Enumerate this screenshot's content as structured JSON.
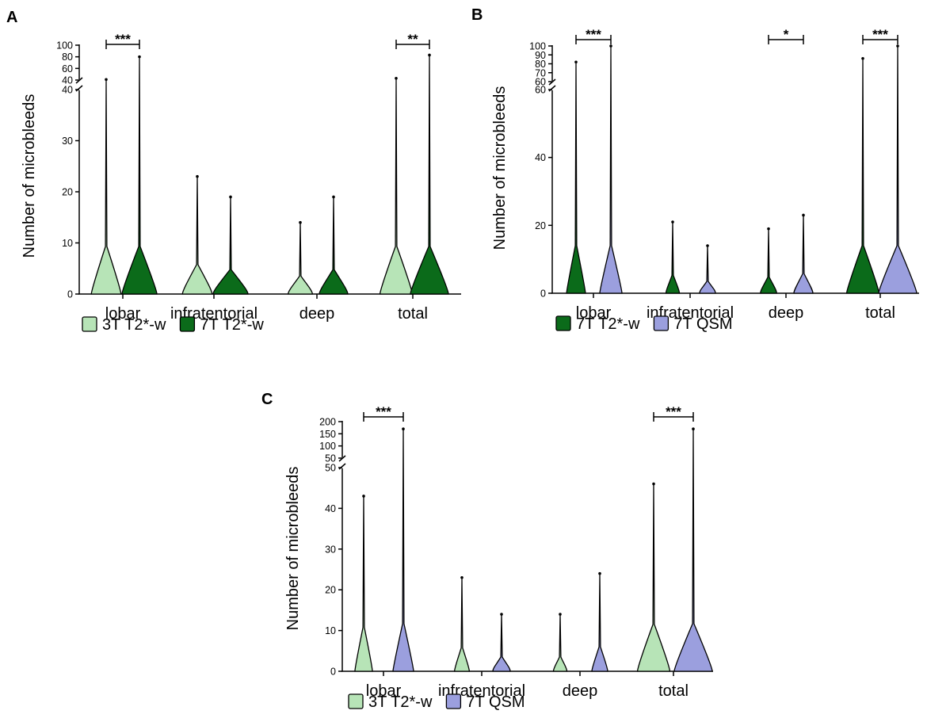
{
  "chart_data": [
    {
      "type": "violin",
      "panel": "A",
      "ylabel": "Number of microbleeds",
      "categories": [
        "lobar",
        "infratentorial",
        "deep",
        "total"
      ],
      "y_axis_lower": {
        "range": [
          0,
          40
        ],
        "ticks": [
          0,
          10,
          20,
          30,
          40
        ]
      },
      "y_axis_upper": {
        "range": [
          40,
          100
        ],
        "ticks": [
          40,
          60,
          80,
          100
        ]
      },
      "series": [
        {
          "name": "3T T2*-w",
          "color": "#b7e4b7",
          "max": [
            41,
            23,
            14,
            43
          ]
        },
        {
          "name": "7T T2*-w",
          "color": "#0b6b1a",
          "max": [
            80,
            19,
            19,
            83
          ]
        }
      ],
      "significance": [
        {
          "category": "lobar",
          "label": "***"
        },
        {
          "category": "total",
          "label": "**"
        }
      ]
    },
    {
      "type": "violin",
      "panel": "B",
      "ylabel": "Number of microbleeds",
      "categories": [
        "lobar",
        "infratentorial",
        "deep",
        "total"
      ],
      "y_axis_lower": {
        "range": [
          0,
          60
        ],
        "ticks": [
          0,
          20,
          40,
          60
        ]
      },
      "y_axis_upper": {
        "range": [
          60,
          100
        ],
        "ticks": [
          60,
          70,
          80,
          90,
          100
        ]
      },
      "series": [
        {
          "name": "7T T2*-w",
          "color": "#0b6b1a",
          "max": [
            82,
            21,
            19,
            86
          ]
        },
        {
          "name": "7T QSM",
          "color": "#9b9fde",
          "max": [
            100,
            14,
            23,
            100
          ]
        }
      ],
      "significance": [
        {
          "category": "lobar",
          "label": "***"
        },
        {
          "category": "deep",
          "label": "*"
        },
        {
          "category": "total",
          "label": "***"
        }
      ]
    },
    {
      "type": "violin",
      "panel": "C",
      "ylabel": "Number of microbleeds",
      "categories": [
        "lobar",
        "infratentorial",
        "deep",
        "total"
      ],
      "y_axis_lower": {
        "range": [
          0,
          50
        ],
        "ticks": [
          0,
          10,
          20,
          30,
          40,
          50
        ]
      },
      "y_axis_upper": {
        "range": [
          50,
          200
        ],
        "ticks": [
          50,
          100,
          150,
          200
        ]
      },
      "series": [
        {
          "name": "3T T2*-w",
          "color": "#b7e4b7",
          "max": [
            43,
            23,
            14,
            46
          ]
        },
        {
          "name": "7T QSM",
          "color": "#9b9fde",
          "max": [
            170,
            14,
            24,
            170
          ]
        }
      ],
      "significance": [
        {
          "category": "lobar",
          "label": "***"
        },
        {
          "category": "total",
          "label": "***"
        }
      ]
    }
  ]
}
